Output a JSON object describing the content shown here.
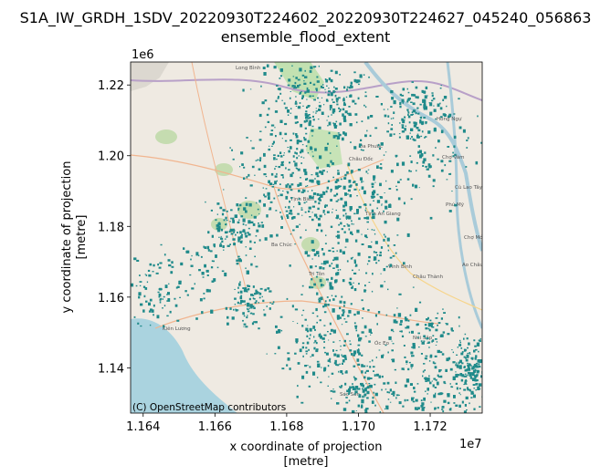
{
  "title": {
    "line1": "S1A_IW_GRDH_1SDV_20220930T224602_20220930T224627_045240_056863",
    "line2": "ensemble_flood_extent"
  },
  "chart_data": {
    "type": "heatmap",
    "title": "S1A_IW_GRDH_1SDV_20220930T224602_20220930T224627_045240_056863\nensemble_flood_extent",
    "xlabel": "x coordinate of projection\n[metre]",
    "ylabel": "y coordinate of projection\n[metre]",
    "x_offset_label": "1e7",
    "y_offset_label": "1e6",
    "xlim": [
      1.16365,
      1.17345
    ],
    "ylim": [
      1.1272,
      1.2265
    ],
    "x_ticks": [
      1.164,
      1.166,
      1.168,
      1.17,
      1.172
    ],
    "x_tick_labels": [
      "1.164",
      "1.166",
      "1.168",
      "1.170",
      "1.172"
    ],
    "y_ticks": [
      1.14,
      1.16,
      1.18,
      1.2,
      1.22
    ],
    "y_tick_labels": [
      "1.14",
      "1.16",
      "1.18",
      "1.20",
      "1.22"
    ],
    "grid": false,
    "legend": "none",
    "flood_color": "#1f8a8a",
    "basemap": "OpenStreetMap",
    "attribution": "(C) OpenStreetMap contributors",
    "map_place_labels": [
      "Long Bình",
      "Hồng Ngự",
      "Châu Đốc",
      "Đa Phước",
      "Chợ Vàm",
      "Tịnh Biên",
      "Tịnh An Giang",
      "Phú Mỹ",
      "Ba Chúc",
      "Tri Tôn",
      "Núi Sập",
      "Óc Eo",
      "Kiên Lương",
      "Sóc Sơn",
      "Vĩnh Bình",
      "Cù Lao Tây",
      "Chợ Mới",
      "Châu Thành",
      "Ao Châu"
    ]
  }
}
